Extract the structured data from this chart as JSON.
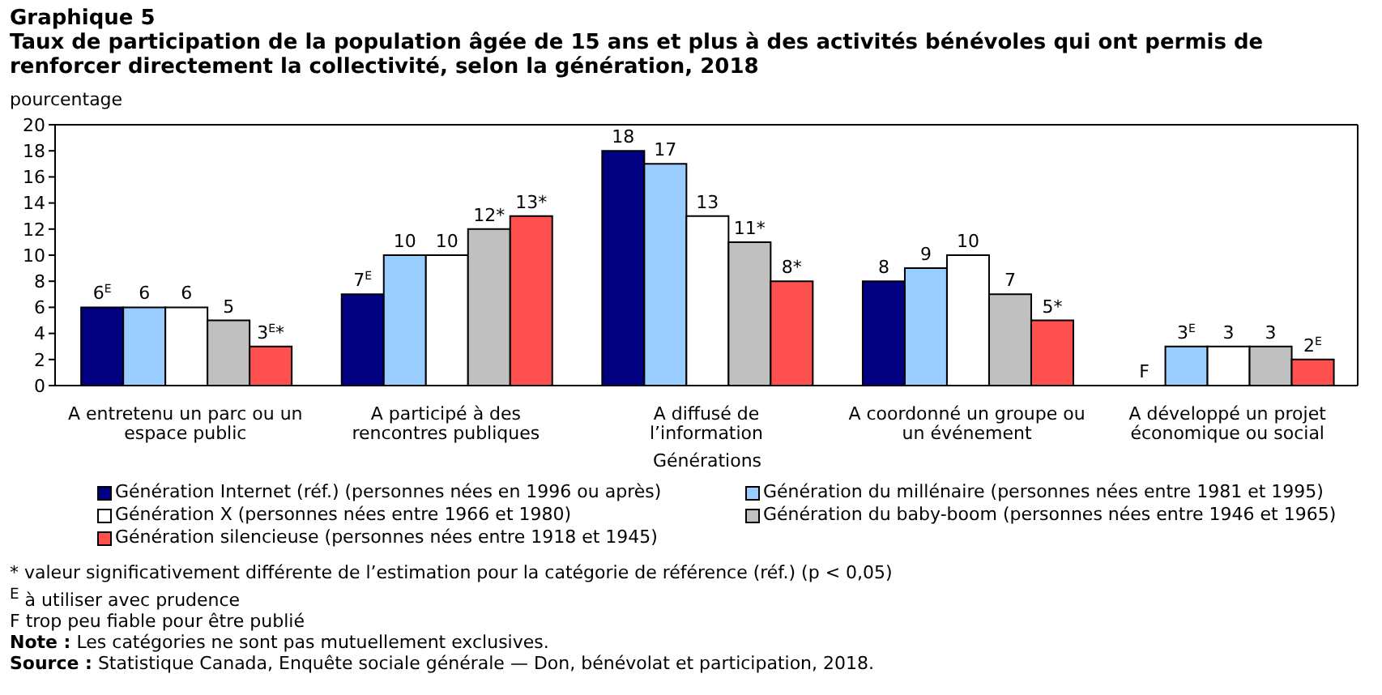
{
  "chart_data": {
    "type": "bar",
    "title": "Graphique 5",
    "subtitle": "Taux de participation de la population âgée de 15 ans et plus à des activités bénévoles qui ont permis de renforcer directement la collectivité, selon la génération, 2018",
    "ylabel": "pourcentage",
    "xlabel": "Générations",
    "categories": [
      "A entretenu un parc ou un espace public",
      "A participé à des rencontres publiques",
      "A diffusé de l’information",
      "A coordonné un groupe ou un événement",
      "A développé un projet économique ou social"
    ],
    "series": [
      {
        "name": "Génération Internet (réf.) (personnes nées en 1996 ou après)",
        "color": "#000080",
        "values": [
          6,
          7,
          18,
          8,
          null
        ],
        "value_labels": [
          "6$^{E}$",
          "7$^{E}$",
          "18",
          "8",
          "F"
        ]
      },
      {
        "name": "Génération du millénaire (personnes nées entre 1981 et 1995)",
        "color": "#99ccff",
        "values": [
          6,
          10,
          17,
          9,
          3
        ],
        "value_labels": [
          "6",
          "10",
          "17",
          "9",
          "3$^{E}$"
        ]
      },
      {
        "name": "Génération X (personnes nées entre 1966 et 1980)",
        "color": "#ffffff",
        "values": [
          6,
          10,
          13,
          10,
          3
        ],
        "value_labels": [
          "6",
          "10",
          "13",
          "10",
          "3"
        ]
      },
      {
        "name": "Génération du baby-boom (personnes nées entre 1946 et 1965)",
        "color": "#c0c0c0",
        "values": [
          5,
          12,
          11,
          7,
          3
        ],
        "value_labels": [
          "5",
          "12*",
          "11*",
          "7",
          "3"
        ]
      },
      {
        "name": "Génération silencieuse (personnes nées entre 1918 et 1945)",
        "color": "#ff5050",
        "values": [
          3,
          13,
          8,
          5,
          2
        ],
        "value_labels": [
          "3$^{E}$*",
          "13*",
          "8*",
          "5*",
          "2$^{E}$"
        ]
      }
    ],
    "ylim": [
      0,
      20
    ],
    "yticks": [
      0,
      2,
      4,
      6,
      8,
      10,
      12,
      14,
      16,
      18,
      20
    ],
    "grid": false,
    "legend": "bottom",
    "annotations": [
      "* valeur significativement différente de l’estimation pour la catégorie de référence (réf.) (p < 0,05)",
      "$^{E}$ à utiliser avec prudence",
      "F trop peu fiable pour être publié",
      "Note : Les catégories ne sont pas mutuellement exclusives.",
      "Source : Statistique Canada, Enquête sociale générale — Don, bénévolat et participation, 2018."
    ]
  }
}
